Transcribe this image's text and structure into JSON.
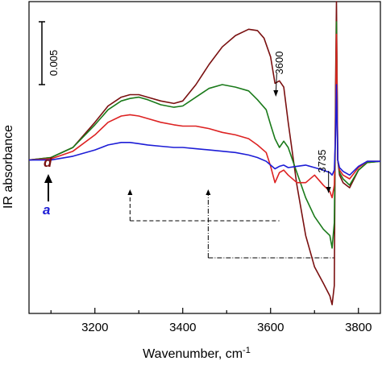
{
  "chart_data": {
    "type": "line",
    "xlabel": "Wavenumber, cm",
    "xlabel_sup": "-1",
    "ylabel": "IR absorbance",
    "xlim": [
      3050,
      3850
    ],
    "ylim": [
      -0.0122,
      0.0126
    ],
    "xticks": [
      "3200",
      "3400",
      "3600",
      "3800"
    ],
    "xtick_values": [
      3200,
      3400,
      3600,
      3800
    ],
    "y_axis_ticks": "none",
    "grid": false,
    "legend": "none",
    "scale_bar": {
      "label": "0.005",
      "value": 0.005,
      "from": 0.006,
      "to": 0.011
    },
    "labels": {
      "d": "d",
      "a": "a",
      "d_color": "#7a1010",
      "a_color": "#1d1dd6"
    },
    "annotations": {
      "peak_3600": "3600",
      "peak_3735": "3735"
    },
    "series": [
      {
        "color": "#7a1010",
        "x": [
          3050,
          3100,
          3150,
          3200,
          3230,
          3260,
          3280,
          3300,
          3320,
          3350,
          3380,
          3400,
          3430,
          3460,
          3490,
          3520,
          3550,
          3570,
          3585,
          3600,
          3610,
          3620,
          3630,
          3640,
          3660,
          3680,
          3700,
          3720,
          3735,
          3740,
          3745,
          3748,
          3750,
          3753,
          3757,
          3765,
          3780,
          3800,
          3820,
          3850
        ],
        "y": [
          0.0,
          0.0002,
          0.001,
          0.003,
          0.0043,
          0.005,
          0.0052,
          0.0052,
          0.005,
          0.0047,
          0.0045,
          0.0047,
          0.006,
          0.0076,
          0.009,
          0.0099,
          0.0104,
          0.0103,
          0.0097,
          0.0082,
          0.0061,
          0.0063,
          0.0058,
          0.003,
          -0.002,
          -0.006,
          -0.0085,
          -0.0098,
          -0.0108,
          -0.0115,
          -0.01,
          0.006,
          0.0126,
          0.0,
          -0.0012,
          -0.0018,
          -0.0022,
          -0.0008,
          -0.0002,
          -0.0001
        ]
      },
      {
        "color": "#1a7a1a",
        "x": [
          3050,
          3100,
          3150,
          3200,
          3230,
          3260,
          3280,
          3300,
          3320,
          3350,
          3380,
          3400,
          3430,
          3460,
          3490,
          3520,
          3550,
          3570,
          3590,
          3600,
          3610,
          3620,
          3630,
          3640,
          3660,
          3680,
          3700,
          3720,
          3735,
          3740,
          3745,
          3748,
          3750,
          3753,
          3757,
          3765,
          3780,
          3800,
          3820,
          3850
        ],
        "y": [
          0.0,
          0.0002,
          0.001,
          0.0028,
          0.004,
          0.0047,
          0.0049,
          0.005,
          0.0048,
          0.0044,
          0.0042,
          0.0043,
          0.005,
          0.0057,
          0.006,
          0.0058,
          0.0055,
          0.0048,
          0.004,
          0.0028,
          0.0017,
          0.001,
          0.0015,
          0.001,
          -0.001,
          -0.003,
          -0.0045,
          -0.0055,
          -0.006,
          -0.007,
          -0.005,
          0.004,
          0.011,
          0.0,
          -0.001,
          -0.0015,
          -0.002,
          -0.0008,
          -0.0002,
          -0.0001
        ]
      },
      {
        "color": "#dd2222",
        "x": [
          3050,
          3100,
          3150,
          3200,
          3230,
          3260,
          3280,
          3300,
          3320,
          3350,
          3380,
          3400,
          3430,
          3460,
          3490,
          3520,
          3550,
          3570,
          3590,
          3600,
          3610,
          3620,
          3630,
          3640,
          3660,
          3680,
          3700,
          3720,
          3735,
          3740,
          3745,
          3748,
          3750,
          3753,
          3757,
          3765,
          3780,
          3800,
          3820,
          3850
        ],
        "y": [
          0.0,
          0.0001,
          0.0007,
          0.002,
          0.003,
          0.0035,
          0.0036,
          0.0035,
          0.0033,
          0.003,
          0.0028,
          0.0027,
          0.0027,
          0.0025,
          0.0022,
          0.002,
          0.0017,
          0.0012,
          0.0006,
          -0.0005,
          -0.0018,
          -0.001,
          -0.0008,
          -0.0012,
          -0.0018,
          -0.0018,
          -0.0012,
          -0.002,
          -0.0025,
          -0.003,
          -0.002,
          0.003,
          0.01,
          0.0,
          -0.0008,
          -0.0012,
          -0.0015,
          -0.0006,
          -0.0001,
          -0.0001
        ]
      },
      {
        "color": "#1d1dd6",
        "x": [
          3050,
          3100,
          3150,
          3200,
          3230,
          3260,
          3280,
          3300,
          3320,
          3350,
          3380,
          3400,
          3430,
          3460,
          3490,
          3520,
          3550,
          3570,
          3590,
          3600,
          3610,
          3620,
          3630,
          3640,
          3660,
          3680,
          3700,
          3720,
          3735,
          3740,
          3745,
          3748,
          3750,
          3753,
          3757,
          3765,
          3780,
          3800,
          3820,
          3850
        ],
        "y": [
          0.0,
          0.0,
          0.0003,
          0.0008,
          0.0012,
          0.0014,
          0.0014,
          0.0013,
          0.0012,
          0.0011,
          0.001,
          0.001,
          0.0009,
          0.0008,
          0.0007,
          0.0006,
          0.0004,
          0.0002,
          -0.0001,
          -0.0004,
          -0.0007,
          -0.0005,
          -0.0004,
          -0.0006,
          -0.0005,
          -0.0004,
          -0.0006,
          -0.0008,
          -0.001,
          -0.0012,
          -0.0008,
          0.002,
          0.006,
          0.0,
          -0.0006,
          -0.0009,
          -0.0012,
          -0.0005,
          -0.0001,
          -0.0001
        ]
      }
    ]
  }
}
